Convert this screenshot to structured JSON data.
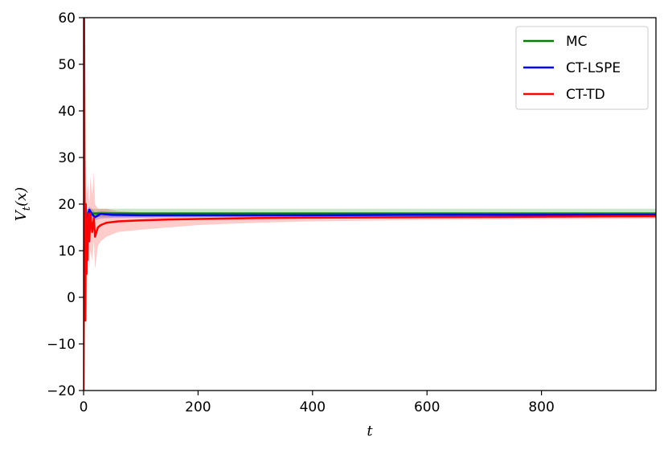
{
  "chart_data": {
    "type": "line",
    "xlabel": "t",
    "ylabel": "V_t(x)",
    "xlim": [
      0,
      1000
    ],
    "ylim": [
      -20,
      60
    ],
    "xticks": [
      0,
      200,
      400,
      600,
      800
    ],
    "yticks": [
      -20,
      -10,
      0,
      10,
      20,
      30,
      40,
      50,
      60
    ],
    "xtick_labels": [
      "0",
      "200",
      "400",
      "600",
      "800"
    ],
    "ytick_labels": [
      "−20",
      "−10",
      "0",
      "10",
      "20",
      "30",
      "40",
      "50",
      "60"
    ],
    "grid": false,
    "legend_position": "top-right",
    "series": [
      {
        "name": "MC",
        "color": "#008000",
        "x": [
          0,
          1000
        ],
        "values": [
          18.0,
          18.0
        ],
        "band_low": [
          17.2,
          17.2
        ],
        "band_high": [
          19.0,
          19.0
        ]
      },
      {
        "name": "CT-LSPE",
        "color": "#0000ff",
        "x": [
          0,
          3,
          6,
          10,
          15,
          20,
          30,
          50,
          100,
          200,
          400,
          600,
          800,
          1000
        ],
        "values": [
          17.5,
          18.5,
          17.0,
          18.8,
          17.8,
          17.2,
          17.9,
          17.7,
          17.6,
          17.6,
          17.6,
          17.7,
          17.7,
          17.7
        ],
        "band_low": [
          16.5,
          17.0,
          16.0,
          17.5,
          16.8,
          16.5,
          16.9,
          17.0,
          17.1,
          17.2,
          17.3,
          17.3,
          17.4,
          17.4
        ],
        "band_high": [
          18.5,
          19.5,
          18.5,
          19.5,
          18.8,
          18.2,
          18.5,
          18.3,
          18.1,
          18.0,
          17.9,
          18.0,
          18.0,
          18.0
        ]
      },
      {
        "name": "CT-TD",
        "color": "#ff0000",
        "x": [
          0,
          1,
          2,
          3,
          4,
          5,
          6,
          7,
          8,
          10,
          12,
          15,
          18,
          20,
          25,
          30,
          40,
          60,
          100,
          150,
          200,
          300,
          400,
          600,
          800,
          1000
        ],
        "values": [
          -20,
          60,
          10,
          -5,
          20,
          5,
          14,
          8,
          18,
          12,
          18,
          14,
          17,
          13,
          15,
          15.5,
          16,
          16.3,
          16.5,
          16.7,
          16.8,
          17.0,
          17.1,
          17.2,
          17.3,
          17.4
        ],
        "band_low": [
          -20,
          40,
          -5,
          -20,
          5,
          -10,
          5,
          -8,
          10,
          6,
          10,
          8,
          12,
          6,
          11,
          12,
          13,
          14,
          14.5,
          15,
          15.5,
          16.0,
          16.3,
          16.6,
          16.8,
          16.9
        ],
        "band_high": [
          0,
          60,
          25,
          12,
          30,
          20,
          24,
          22,
          26,
          20,
          26,
          22,
          27,
          20,
          19,
          19,
          19,
          18.5,
          18.2,
          18.0,
          17.9,
          17.9,
          17.9,
          17.9,
          17.9,
          17.9
        ]
      }
    ]
  }
}
